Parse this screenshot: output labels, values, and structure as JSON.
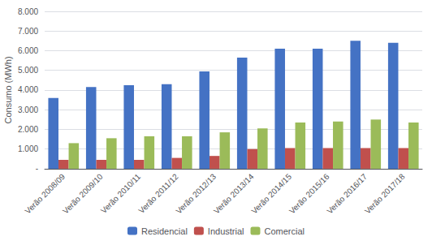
{
  "chart_data": {
    "type": "bar",
    "categories": [
      "Verão 2008/09",
      "Verão 2009/10",
      "Verão 2010/11",
      "Verão 2011/12",
      "Verão 2012/13",
      "Verão 2013/14",
      "Verão 2014/15",
      "Verão 2015/16",
      "Verão 2016/17",
      "Verão 2017/18"
    ],
    "series": [
      {
        "name": "Residencial",
        "color": "#4472C4",
        "values": [
          3600,
          4150,
          4250,
          4300,
          4950,
          5650,
          6100,
          6100,
          6500,
          6400
        ]
      },
      {
        "name": "Industrial",
        "color": "#C0504D",
        "values": [
          450,
          450,
          450,
          550,
          650,
          1000,
          1050,
          1050,
          1050,
          1050
        ]
      },
      {
        "name": "Comercial",
        "color": "#9BBB59",
        "values": [
          1300,
          1550,
          1650,
          1650,
          1850,
          2050,
          2350,
          2400,
          2500,
          2350
        ]
      }
    ],
    "ylabel": "Consumo (MWh)",
    "ylim": [
      0,
      8000
    ],
    "yticks": [
      {
        "value": 0,
        "label": "-"
      },
      {
        "value": 1000,
        "label": "1.000"
      },
      {
        "value": 2000,
        "label": "2.000"
      },
      {
        "value": 3000,
        "label": "3.000"
      },
      {
        "value": 4000,
        "label": "4.000"
      },
      {
        "value": 5000,
        "label": "5.000"
      },
      {
        "value": 6000,
        "label": "6.000"
      },
      {
        "value": 7000,
        "label": "7.000"
      },
      {
        "value": 8000,
        "label": "8.000"
      }
    ],
    "grid": true,
    "legend": "bottom"
  }
}
